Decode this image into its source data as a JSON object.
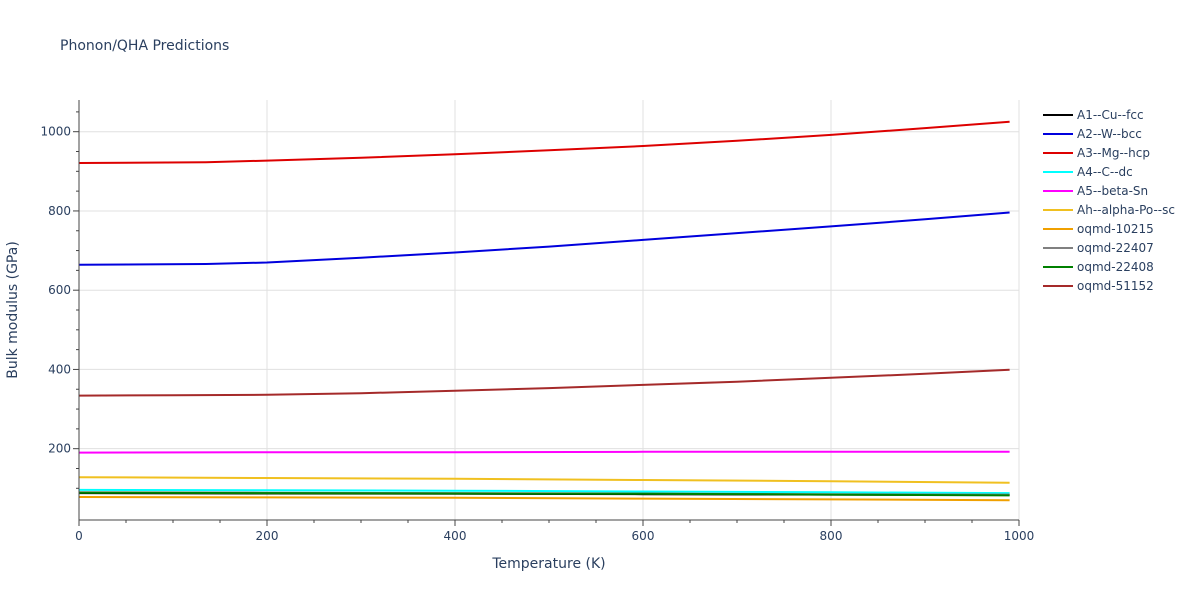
{
  "chart_data": {
    "type": "line",
    "title": "Phonon/QHA Predictions",
    "xlabel": "Temperature (K)",
    "ylabel": "Bulk modulus (GPa)",
    "xlim": [
      0,
      1000
    ],
    "ylim": [
      20,
      1080
    ],
    "xticks": [
      0,
      200,
      400,
      600,
      800,
      1000
    ],
    "yticks": [
      200,
      400,
      600,
      800,
      1000
    ],
    "grid": true,
    "legend_position": "right",
    "series": [
      {
        "name": "A1--Cu--fcc",
        "color": "#000000",
        "x": [
          0,
          200,
          400,
          600,
          800,
          990
        ],
        "y": [
          88,
          87,
          86,
          85,
          84,
          83
        ]
      },
      {
        "name": "A2--W--bcc",
        "color": "#0000dd",
        "x": [
          0,
          135,
          200,
          300,
          400,
          500,
          600,
          700,
          800,
          900,
          990
        ],
        "y": [
          664,
          666,
          670,
          682,
          695,
          710,
          727,
          744,
          761,
          779,
          796
        ]
      },
      {
        "name": "A3--Mg--hcp",
        "color": "#dd0000",
        "x": [
          0,
          135,
          200,
          300,
          400,
          500,
          600,
          700,
          800,
          900,
          990
        ],
        "y": [
          921,
          923,
          927,
          934,
          943,
          953,
          964,
          977,
          992,
          1009,
          1025
        ]
      },
      {
        "name": "A4--C--dc",
        "color": "#00ffff",
        "x": [
          0,
          200,
          400,
          600,
          800,
          990
        ],
        "y": [
          96,
          95,
          94,
          92,
          90,
          88
        ]
      },
      {
        "name": "A5--beta-Sn",
        "color": "#ff00ff",
        "x": [
          0,
          200,
          400,
          600,
          800,
          990
        ],
        "y": [
          190,
          191,
          191,
          192,
          192,
          192
        ]
      },
      {
        "name": "Ah--alpha-Po--sc",
        "color": "#f0c020",
        "x": [
          0,
          200,
          400,
          600,
          800,
          990
        ],
        "y": [
          128,
          126,
          124,
          121,
          118,
          114
        ]
      },
      {
        "name": "oqmd-10215",
        "color": "#f0a000",
        "x": [
          0,
          200,
          400,
          600,
          800,
          990
        ],
        "y": [
          78,
          77,
          76,
          74,
          72,
          70
        ]
      },
      {
        "name": "oqmd-22407",
        "color": "#808080",
        "x": [
          0,
          200,
          400,
          600,
          800,
          990
        ],
        "y": [
          90,
          89,
          88,
          87,
          85,
          84
        ]
      },
      {
        "name": "oqmd-22408",
        "color": "#008000",
        "x": [
          0,
          200,
          400,
          600,
          800,
          990
        ],
        "y": [
          89,
          88,
          87,
          86,
          84,
          82
        ]
      },
      {
        "name": "oqmd-51152",
        "color": "#a52a2a",
        "x": [
          0,
          100,
          200,
          300,
          400,
          500,
          600,
          700,
          800,
          900,
          990
        ],
        "y": [
          334,
          335,
          336,
          340,
          346,
          353,
          361,
          369,
          379,
          389,
          399
        ]
      }
    ]
  }
}
